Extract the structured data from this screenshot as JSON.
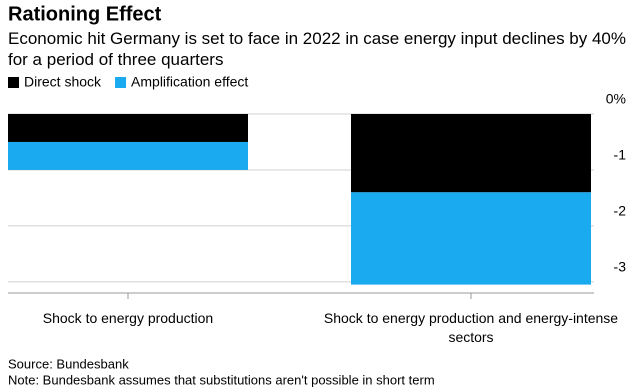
{
  "chart_data": {
    "type": "stacked_bar",
    "title": "Rationing Effect",
    "subtitle": "Economic hit Germany is set to face in 2022 in case energy input declines by 40% for a period of three quarters",
    "categories": [
      "Shock to energy production",
      "Shock to energy production and energy-intense sectors"
    ],
    "series": [
      {
        "name": "Direct shock",
        "color": "#000000",
        "values": [
          -0.5,
          -1.4
        ]
      },
      {
        "name": "Amplification effect",
        "color": "#1aaaf0",
        "values": [
          -0.5,
          -1.65
        ]
      }
    ],
    "ylim": [
      -3.2,
      0
    ],
    "yticks": [
      {
        "value": 0,
        "label": "0%"
      },
      -1,
      -2,
      -3
    ],
    "grid": true,
    "source": "Source: Bundesbank",
    "note": "Note: Bundesbank assumes that substitutions aren't possible in short term"
  }
}
